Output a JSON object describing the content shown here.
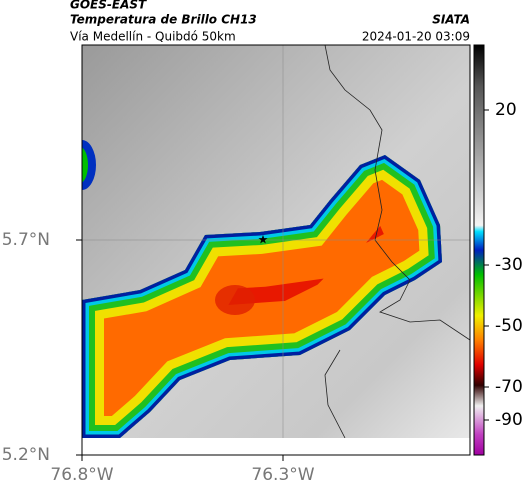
{
  "header": {
    "source": "GOES-EAST",
    "title": "Temperatura de Brillo CH13",
    "org": "SIATA",
    "location": "Vía Medellín - Quibdó 50km",
    "datetime": "2024-01-20 03:09"
  },
  "axes": {
    "yticks": [
      {
        "value": 5.7,
        "label": "5.7°N"
      },
      {
        "value": 5.2,
        "label": "5.2°N"
      }
    ],
    "xticks": [
      {
        "value": -76.8,
        "label": "76.8°W"
      },
      {
        "value": -76.3,
        "label": "76.3°W"
      }
    ]
  },
  "colorbar": {
    "ticks": [
      20,
      -30,
      -50,
      -70,
      -90
    ]
  }
}
